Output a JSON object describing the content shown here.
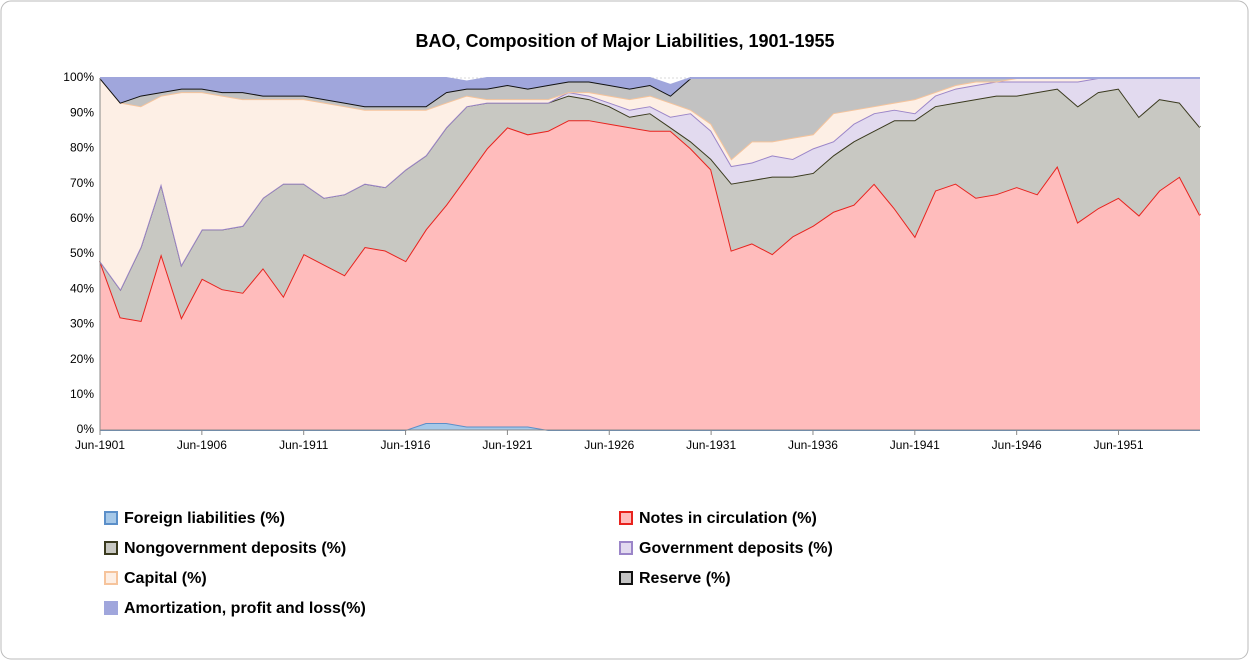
{
  "chart_data": {
    "type": "stacked_area",
    "title": "BAO, Composition of Major Liabilities, 1901-1955",
    "categories": [
      "Jun-1901",
      null,
      null,
      null,
      null,
      "Jun-1906",
      null,
      null,
      null,
      null,
      "Jun-1911",
      null,
      null,
      null,
      null,
      "Jun-1916",
      null,
      null,
      null,
      null,
      "Jun-1921",
      null,
      null,
      null,
      null,
      "Jun-1926",
      null,
      null,
      null,
      null,
      "Jun-1931",
      null,
      null,
      null,
      null,
      "Jun-1936",
      null,
      null,
      null,
      null,
      "Jun-1941",
      null,
      null,
      null,
      null,
      "Jun-1946",
      null,
      null,
      null,
      null,
      "Jun-1951",
      null,
      null,
      null,
      null
    ],
    "ylim": [
      0,
      100
    ],
    "yticks": [
      {
        "value": 0,
        "label": "0%"
      },
      {
        "value": 10,
        "label": "10%"
      },
      {
        "value": 20,
        "label": "20%"
      },
      {
        "value": 30,
        "label": "30%"
      },
      {
        "value": 40,
        "label": "40%"
      },
      {
        "value": 50,
        "label": "50%"
      },
      {
        "value": 60,
        "label": "60%"
      },
      {
        "value": 70,
        "label": "70%"
      },
      {
        "value": 80,
        "label": "80%"
      },
      {
        "value": 90,
        "label": "90%"
      },
      {
        "value": 100,
        "label": "100%"
      }
    ],
    "grid": true,
    "legend": "bottom",
    "series": [
      {
        "name": "Foreign liabilities (%)",
        "color": "#a6c8e8",
        "border": "#5b8fc9",
        "values": [
          0,
          0,
          0,
          0,
          0,
          0,
          0,
          0,
          0,
          0,
          0,
          0,
          0,
          0,
          0,
          0,
          2,
          2,
          1,
          1,
          1,
          1,
          0,
          0,
          0,
          0,
          0,
          0,
          0,
          0,
          0,
          0,
          0,
          0,
          0,
          0,
          0,
          0,
          0,
          0,
          0,
          0,
          0,
          0,
          0,
          0,
          0,
          0,
          0,
          0,
          0,
          0,
          0,
          0,
          0
        ]
      },
      {
        "name": "Notes in circulation (%)",
        "color": "#ffbcbc",
        "border": "#e8231e",
        "values": [
          48,
          32,
          31,
          50,
          32,
          43,
          40,
          39,
          46,
          38,
          50,
          47,
          44,
          52,
          51,
          48,
          55,
          62,
          71,
          79,
          85,
          83,
          85,
          88,
          88,
          87,
          86,
          85,
          85,
          80,
          74,
          51,
          53,
          50,
          55,
          58,
          62,
          64,
          70,
          63,
          55,
          68,
          70,
          66,
          67,
          69,
          67,
          75,
          59,
          63,
          66,
          61,
          68,
          72,
          61
        ]
      },
      {
        "name": "Nongovernment deposits (%)",
        "color": "#c8c8c2",
        "border": "#3a3a1e",
        "values": [
          0,
          8,
          21,
          20,
          15,
          14,
          17,
          19,
          20,
          32,
          20,
          19,
          23,
          18,
          18,
          26,
          21,
          22,
          20,
          13,
          7,
          9,
          8,
          7,
          6,
          5,
          3,
          5,
          1,
          2,
          3,
          19,
          18,
          22,
          17,
          15,
          16,
          18,
          15,
          25,
          33,
          24,
          23,
          28,
          28,
          26,
          29,
          22,
          33,
          33,
          31,
          28,
          26,
          21,
          25
        ]
      },
      {
        "name": "Government deposits (%)",
        "color": "#e2daef",
        "border": "#9b85c8",
        "values": [
          0,
          0,
          0,
          0,
          0,
          0,
          0,
          0,
          0,
          0,
          0,
          0,
          0,
          0,
          0,
          0,
          0,
          0,
          0,
          0,
          0,
          0,
          0,
          1,
          1,
          1,
          2,
          2,
          3,
          8,
          8,
          5,
          5,
          6,
          5,
          7,
          4,
          5,
          5,
          3,
          2,
          3,
          4,
          4,
          4,
          4,
          3,
          2,
          7,
          4,
          3,
          11,
          6,
          7,
          14
        ]
      },
      {
        "name": "Capital (%)",
        "color": "#fdefe5",
        "border": "#f6c49c",
        "values": [
          52,
          53,
          40,
          25,
          49,
          39,
          38,
          36,
          28,
          24,
          24,
          27,
          25,
          21,
          22,
          17,
          13,
          7,
          3,
          1,
          1,
          1,
          1,
          0,
          1,
          2,
          3,
          3,
          4,
          1,
          2,
          2,
          6,
          4,
          6,
          4,
          8,
          4,
          2,
          2,
          4,
          1,
          1,
          1,
          0,
          1,
          1,
          1,
          1,
          0,
          0,
          0,
          0,
          0,
          0
        ]
      },
      {
        "name": "Reserve (%)",
        "color": "#c2c2c2",
        "border": "#111111",
        "values": [
          0,
          0,
          3,
          1,
          1,
          1,
          1,
          2,
          1,
          1,
          1,
          1,
          1,
          1,
          1,
          1,
          1,
          3,
          2,
          3,
          4,
          3,
          4,
          3,
          3,
          3,
          3,
          3,
          2,
          9,
          13,
          23,
          18,
          18,
          17,
          16,
          10,
          9,
          8,
          7,
          6,
          4,
          2,
          1,
          1,
          0,
          0,
          0,
          0,
          0,
          0,
          0,
          0,
          0,
          0
        ]
      },
      {
        "name": "Amortization, profit and loss(%)",
        "color": "#a0a6dc",
        "border": "#a0a6dc",
        "values": [
          0,
          7,
          5,
          4,
          3,
          3,
          4,
          4,
          5,
          5,
          5,
          6,
          7,
          8,
          8,
          8,
          8,
          4,
          2,
          3,
          2,
          3,
          2,
          1,
          1,
          2,
          3,
          2,
          3,
          0,
          0,
          0,
          0,
          0,
          0,
          0,
          0,
          0,
          0,
          0,
          0,
          0,
          0,
          0,
          0,
          0,
          0,
          0,
          0,
          0,
          0,
          0,
          0,
          0,
          0
        ]
      }
    ]
  }
}
